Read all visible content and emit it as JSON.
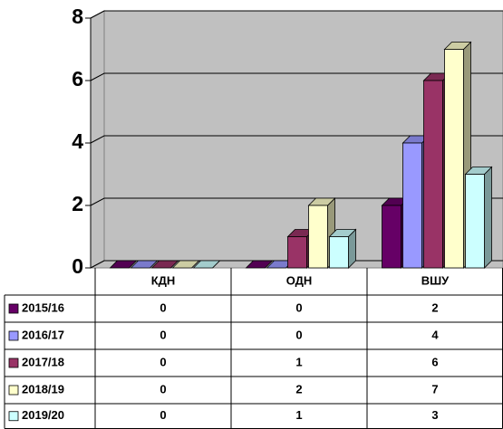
{
  "chart_data": {
    "type": "bar3d",
    "categories": [
      "КДН",
      "ОДН",
      "ВШУ"
    ],
    "series": [
      {
        "name": "2015/16",
        "color": "#660066",
        "values": [
          0,
          0,
          2
        ]
      },
      {
        "name": "2016/17",
        "color": "#9999ff",
        "values": [
          0,
          0,
          4
        ]
      },
      {
        "name": "2017/18",
        "color": "#993366",
        "values": [
          0,
          1,
          6
        ]
      },
      {
        "name": "2018/19",
        "color": "#ffffcc",
        "values": [
          0,
          2,
          7
        ]
      },
      {
        "name": "2019/20",
        "color": "#ccffff",
        "values": [
          0,
          1,
          3
        ]
      }
    ],
    "ylim": [
      0,
      8
    ],
    "yticks": [
      0,
      2,
      4,
      6,
      8
    ],
    "grid": true,
    "data_table": true
  }
}
